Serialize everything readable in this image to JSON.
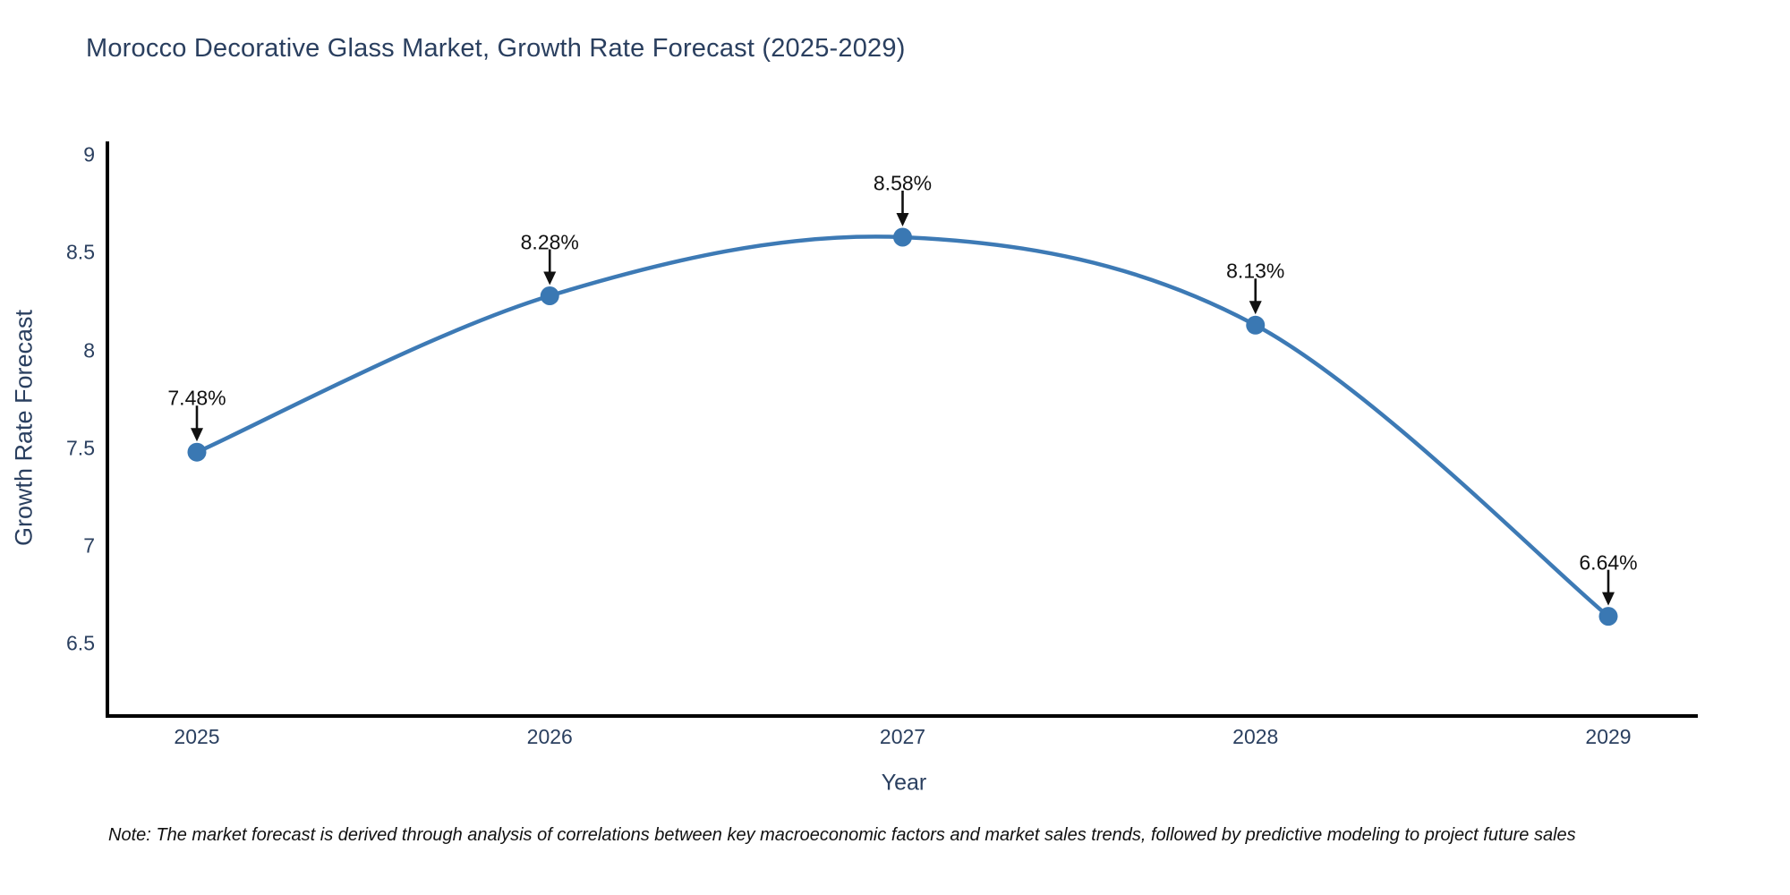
{
  "title": "Morocco Decorative Glass Market, Growth Rate Forecast (2025-2029)",
  "note": "Note: The market forecast is derived through analysis of correlations between key macroeconomic factors and market sales trends, followed by predictive modeling to project future sales",
  "chart_data": {
    "type": "line",
    "title": "Morocco Decorative Glass Market, Growth Rate Forecast (2025-2029)",
    "xlabel": "Year",
    "ylabel": "Growth Rate Forecast",
    "x": [
      "2025",
      "2026",
      "2027",
      "2028",
      "2029"
    ],
    "series": [
      {
        "name": "Growth Rate Forecast",
        "values": [
          7.48,
          8.28,
          8.58,
          8.13,
          6.64
        ]
      }
    ],
    "point_labels": [
      "7.48%",
      "8.28%",
      "8.58%",
      "8.13%",
      "6.64%"
    ],
    "yticks": [
      6.5,
      7,
      7.5,
      8,
      8.5,
      9
    ],
    "ytick_labels": [
      "6.5",
      "7",
      "7.5",
      "8",
      "8.5",
      "9"
    ],
    "ylim": [
      6.13,
      9.07
    ],
    "grid": false,
    "legend_position": "none",
    "line_style": "spline",
    "annotation_arrows": true,
    "colors": {
      "line": "#3d7ab5",
      "marker": "#3a78b3",
      "text": "#2a3f5f",
      "annotation": "#111111",
      "axis": "#000000",
      "background": "#ffffff"
    }
  }
}
